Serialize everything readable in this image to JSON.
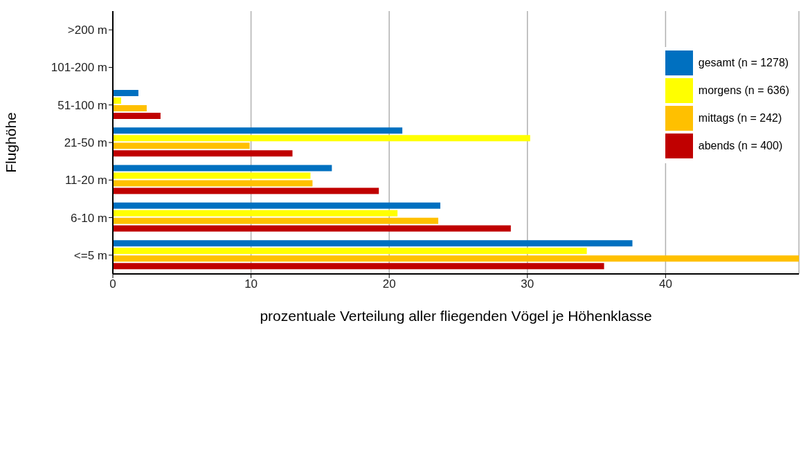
{
  "chart_data": {
    "type": "bar",
    "orientation": "horizontal",
    "xlabel": "prozentuale Verteilung aller fliegenden Vögel je Höhenklasse",
    "ylabel": "Flughöhe",
    "categories": [
      ">200 m",
      "101-200 m",
      "51-100 m",
      "21-50 m",
      "11-20 m",
      "6-10 m",
      "<=5 m"
    ],
    "series": [
      {
        "name": "gesamt (n = 1278)",
        "color": "#0070c0",
        "values": [
          0,
          0,
          1.85,
          20.95,
          15.85,
          23.7,
          37.6
        ]
      },
      {
        "name": "morgens (n = 636)",
        "color": "#ffff00",
        "values": [
          0,
          0,
          0.6,
          30.2,
          14.3,
          20.6,
          34.3
        ]
      },
      {
        "name": "mittags (n = 242)",
        "color": "#ffc000",
        "values": [
          0,
          0,
          2.45,
          9.9,
          14.45,
          23.55,
          49.65
        ]
      },
      {
        "name": "abends (n = 400)",
        "color": "#c00000",
        "values": [
          0,
          0,
          3.45,
          13.0,
          19.25,
          28.8,
          35.55
        ]
      }
    ],
    "xlim": [
      0,
      49.65
    ],
    "xticks": [
      0,
      10,
      20,
      30,
      40
    ],
    "grid": "x",
    "legend": "top right"
  }
}
